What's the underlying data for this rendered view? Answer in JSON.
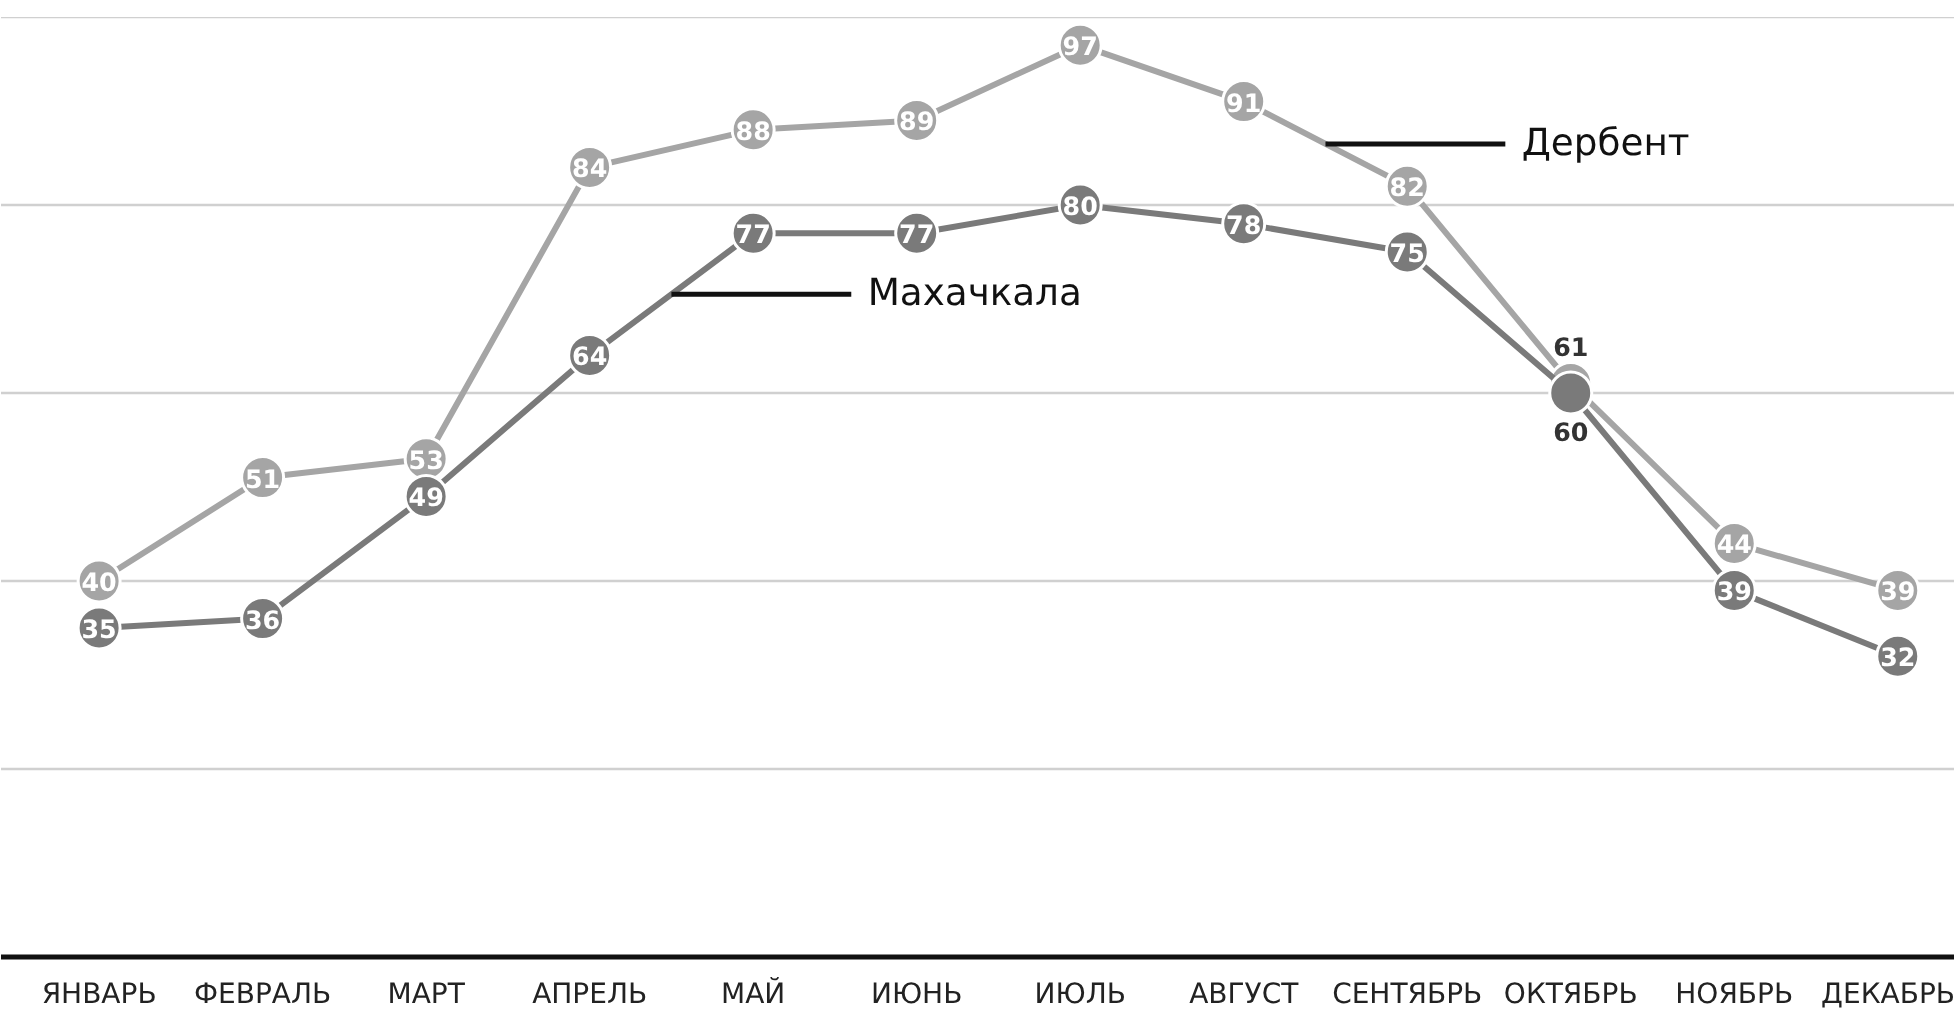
{
  "chart_data": {
    "type": "line",
    "categories": [
      "ЯНВАРЬ",
      "ФЕВРАЛЬ",
      "МАРТ",
      "АПРЕЛЬ",
      "МАЙ",
      "ИЮНЬ",
      "ИЮЛЬ",
      "АВГУСТ",
      "СЕНТЯБРЬ",
      "ОКТЯБРЬ",
      "НОЯБРЬ",
      "ДЕКАБРЬ"
    ],
    "series": [
      {
        "name": "Дербент",
        "color": "#a5a5a5",
        "values": [
          40,
          51,
          53,
          84,
          88,
          89,
          97,
          91,
          82,
          61,
          44,
          39
        ]
      },
      {
        "name": "Махачкала",
        "color": "#7a7a7a",
        "values": [
          35,
          36,
          49,
          64,
          77,
          77,
          80,
          78,
          75,
          60,
          39,
          32
        ]
      }
    ],
    "ylim": [
      0,
      100
    ],
    "yticks": [
      {
        "value": 0,
        "label": null
      },
      {
        "value": 20,
        "label": null
      },
      {
        "value": 40,
        "label": null
      },
      {
        "value": 60,
        "label": null
      },
      {
        "value": 80,
        "label": null
      }
    ],
    "grid": "y",
    "tick_labels": "x",
    "marker": "circle",
    "data_labels": true,
    "legend": false
  }
}
